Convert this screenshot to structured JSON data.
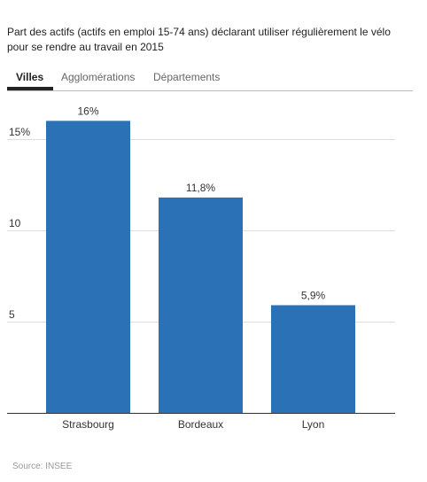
{
  "title": "Part des actifs (actifs en emploi 15-74 ans) déclarant utiliser régulièrement le vélo pour se rendre au travail en 2015",
  "tabs": [
    {
      "label": "Villes",
      "active": true
    },
    {
      "label": "Agglomérations",
      "active": false
    },
    {
      "label": "Départements",
      "active": false
    }
  ],
  "source": "Source: INSEE",
  "colors": {
    "bar": "#2a72b5",
    "grid": "#dddddd",
    "axis": "#333333"
  },
  "chart_data": {
    "type": "bar",
    "categories": [
      "Strasbourg",
      "Bordeaux",
      "Lyon"
    ],
    "values": [
      16,
      11.8,
      5.9
    ],
    "value_labels": [
      "16%",
      "11,8%",
      "5,9%"
    ],
    "yticks": [
      5,
      10,
      15
    ],
    "ytick_labels": [
      "5",
      "10",
      "15%"
    ],
    "ylim": [
      0,
      17
    ],
    "grid": true,
    "title": "",
    "xlabel": "",
    "ylabel": ""
  }
}
